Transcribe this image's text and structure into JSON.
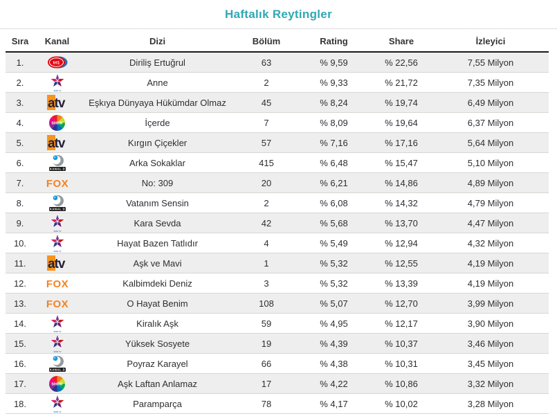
{
  "page": {
    "title": "Haftalık Reytingler"
  },
  "colors": {
    "title_accent": "#2fa8b5",
    "row_stripe": "#eeeeee"
  },
  "table": {
    "columns": [
      {
        "key": "sira",
        "label": "Sıra"
      },
      {
        "key": "kanal",
        "label": "Kanal"
      },
      {
        "key": "dizi",
        "label": "Dizi"
      },
      {
        "key": "bolum",
        "label": "Bölüm"
      },
      {
        "key": "rating",
        "label": "Rating"
      },
      {
        "key": "share",
        "label": "Share"
      },
      {
        "key": "izleyici",
        "label": "İzleyici"
      }
    ],
    "rows": [
      {
        "sira": "1.",
        "channel": "trt1",
        "channel_name": "TRT 1",
        "dizi": "Diriliş Ertuğrul",
        "bolum": "63",
        "rating": "% 9,59",
        "share": "% 22,56",
        "izleyici": "7,55 Milyon"
      },
      {
        "sira": "2.",
        "channel": "star",
        "channel_name": "Star TV",
        "dizi": "Anne",
        "bolum": "2",
        "rating": "% 9,33",
        "share": "% 21,72",
        "izleyici": "7,35 Milyon"
      },
      {
        "sira": "3.",
        "channel": "atv",
        "channel_name": "ATV",
        "dizi": "Eşkıya Dünyaya Hükümdar Olmaz",
        "bolum": "45",
        "rating": "% 8,24",
        "share": "% 19,74",
        "izleyici": "6,49 Milyon"
      },
      {
        "sira": "4.",
        "channel": "show",
        "channel_name": "Show TV",
        "dizi": "İçerde",
        "bolum": "7",
        "rating": "% 8,09",
        "share": "% 19,64",
        "izleyici": "6,37 Milyon"
      },
      {
        "sira": "5.",
        "channel": "atv",
        "channel_name": "ATV",
        "dizi": "Kırgın Çiçekler",
        "bolum": "57",
        "rating": "% 7,16",
        "share": "% 17,16",
        "izleyici": "5,64 Milyon"
      },
      {
        "sira": "6.",
        "channel": "kanald",
        "channel_name": "Kanal D",
        "dizi": "Arka Sokaklar",
        "bolum": "415",
        "rating": "% 6,48",
        "share": "% 15,47",
        "izleyici": "5,10 Milyon"
      },
      {
        "sira": "7.",
        "channel": "fox",
        "channel_name": "FOX",
        "dizi": "No: 309",
        "bolum": "20",
        "rating": "% 6,21",
        "share": "% 14,86",
        "izleyici": "4,89 Milyon"
      },
      {
        "sira": "8.",
        "channel": "kanald",
        "channel_name": "Kanal D",
        "dizi": "Vatanım Sensin",
        "bolum": "2",
        "rating": "% 6,08",
        "share": "% 14,32",
        "izleyici": "4,79 Milyon"
      },
      {
        "sira": "9.",
        "channel": "star",
        "channel_name": "Star TV",
        "dizi": "Kara Sevda",
        "bolum": "42",
        "rating": "% 5,68",
        "share": "% 13,70",
        "izleyici": "4,47 Milyon"
      },
      {
        "sira": "10.",
        "channel": "star",
        "channel_name": "Star TV",
        "dizi": "Hayat Bazen Tatlıdır",
        "bolum": "4",
        "rating": "% 5,49",
        "share": "% 12,94",
        "izleyici": "4,32 Milyon"
      },
      {
        "sira": "11.",
        "channel": "atv",
        "channel_name": "ATV",
        "dizi": "Aşk ve Mavi",
        "bolum": "1",
        "rating": "% 5,32",
        "share": "% 12,55",
        "izleyici": "4,19 Milyon"
      },
      {
        "sira": "12.",
        "channel": "fox",
        "channel_name": "FOX",
        "dizi": "Kalbimdeki Deniz",
        "bolum": "3",
        "rating": "% 5,32",
        "share": "% 13,39",
        "izleyici": "4,19 Milyon"
      },
      {
        "sira": "13.",
        "channel": "fox",
        "channel_name": "FOX",
        "dizi": "O Hayat Benim",
        "bolum": "108",
        "rating": "% 5,07",
        "share": "% 12,70",
        "izleyici": "3,99 Milyon"
      },
      {
        "sira": "14.",
        "channel": "star",
        "channel_name": "Star TV",
        "dizi": "Kiralık Aşk",
        "bolum": "59",
        "rating": "% 4,95",
        "share": "% 12,17",
        "izleyici": "3,90 Milyon"
      },
      {
        "sira": "15.",
        "channel": "star",
        "channel_name": "Star TV",
        "dizi": "Yüksek Sosyete",
        "bolum": "19",
        "rating": "% 4,39",
        "share": "% 10,37",
        "izleyici": "3,46 Milyon"
      },
      {
        "sira": "16.",
        "channel": "kanald",
        "channel_name": "Kanal D",
        "dizi": "Poyraz Karayel",
        "bolum": "66",
        "rating": "% 4,38",
        "share": "% 10,31",
        "izleyici": "3,45 Milyon"
      },
      {
        "sira": "17.",
        "channel": "show",
        "channel_name": "Show TV",
        "dizi": "Aşk Laftan Anlamaz",
        "bolum": "17",
        "rating": "% 4,22",
        "share": "% 10,86",
        "izleyici": "3,32 Milyon"
      },
      {
        "sira": "18.",
        "channel": "star",
        "channel_name": "Star TV",
        "dizi": "Paramparça",
        "bolum": "78",
        "rating": "% 4,17",
        "share": "% 10,02",
        "izleyici": "3,28 Milyon"
      }
    ]
  }
}
